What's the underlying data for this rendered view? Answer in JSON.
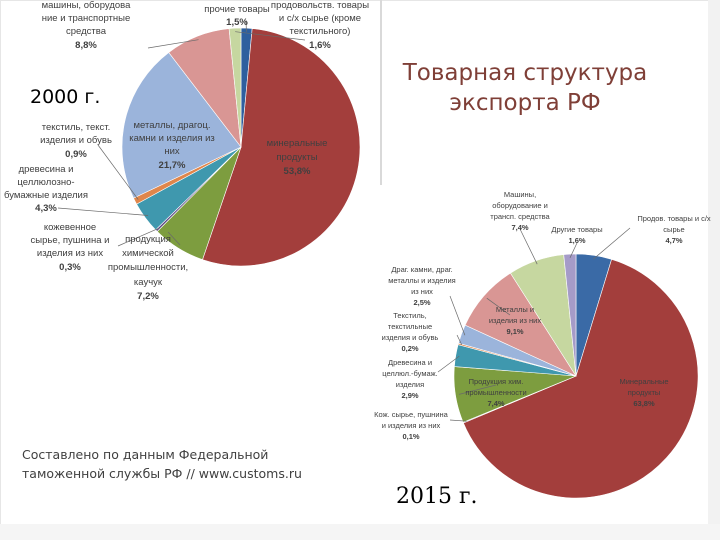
{
  "slide": {
    "title_line1": "Товарная структура",
    "title_line2": "экспорта РФ",
    "year_2000": "2000 г.",
    "year_2015": "2015 г.",
    "source_line1": "Составлено по данным Федеральной",
    "source_line2": "таможенной службы РФ // www.customs.ru"
  },
  "chart_data": [
    {
      "type": "pie",
      "title": "2000 г.",
      "slices": [
        {
          "label": "прочие товары",
          "value": 1.5,
          "color": "#2e5f9e"
        },
        {
          "label": "минеральные продукты",
          "value": 53.8,
          "color": "#a33e3c"
        },
        {
          "label": "продукция химической промышленности, каучук",
          "value": 7.2,
          "color": "#7d9d3f"
        },
        {
          "label": "кожевенное сырье, пушнина и изделия из них",
          "value": 0.3,
          "color": "#5b4a86"
        },
        {
          "label": "древесина и целлюлозно-бумажные изделия",
          "value": 4.3,
          "color": "#3f98ae"
        },
        {
          "label": "текстиль, текстильные изделия и обувь",
          "value": 0.9,
          "color": "#e0864b"
        },
        {
          "label": "металлы, драгоценные камни и изделия из них",
          "value": 21.7,
          "color": "#9bb4db"
        },
        {
          "label": "машины, оборудование и транспортные средства",
          "value": 8.8,
          "color": "#d99694"
        },
        {
          "label": "продовольственные товары и с/х сырье (кроме текстильного)",
          "value": 1.6,
          "color": "#c6d7a0"
        }
      ],
      "label_texts": [
        {
          "text": "машины, оборудова",
          "bold": false
        },
        {
          "text": "ние и транспортные",
          "bold": false
        },
        {
          "text": "средства",
          "bold": false
        },
        {
          "text": "8,8%",
          "bold": true
        },
        {
          "text": "прочие товары",
          "bold": false
        },
        {
          "text": "1,5%",
          "bold": true
        },
        {
          "text": "продовольств. товары",
          "bold": false
        },
        {
          "text": "и с/х сырье (кроме",
          "bold": false
        },
        {
          "text": "текстильного)",
          "bold": false
        },
        {
          "text": "1,6%",
          "bold": true
        },
        {
          "text": "текстиль, текст.",
          "bold": false
        },
        {
          "text": "изделия и обувь",
          "bold": false
        },
        {
          "text": "0,9%",
          "bold": true
        },
        {
          "text": "металлы, драгоц.",
          "bold": false
        },
        {
          "text": "камни и изделия из",
          "bold": false
        },
        {
          "text": "них",
          "bold": false
        },
        {
          "text": "21,7%",
          "bold": true
        },
        {
          "text": "минеральные",
          "bold": false
        },
        {
          "text": "продукты",
          "bold": false
        },
        {
          "text": "53,8%",
          "bold": true
        },
        {
          "text": "древесина и",
          "bold": false
        },
        {
          "text": "целлюлозно-",
          "bold": false
        },
        {
          "text": "бумажные изделия",
          "bold": false
        },
        {
          "text": "4,3%",
          "bold": true
        },
        {
          "text": "кожевенное",
          "bold": false
        },
        {
          "text": "сырье, пушнина и",
          "bold": false
        },
        {
          "text": "изделия из них",
          "bold": false
        },
        {
          "text": "0,3%",
          "bold": true
        },
        {
          "text": "продукция",
          "bold": false
        },
        {
          "text": "химической",
          "bold": false
        },
        {
          "text": "промышленности,",
          "bold": false
        },
        {
          "text": "каучук",
          "bold": false
        },
        {
          "text": "7,2%",
          "bold": true
        }
      ]
    },
    {
      "type": "pie",
      "title": "2015 г.",
      "slices": [
        {
          "label": "Продов. товары и с/х сырье",
          "value": 4.7,
          "color": "#3a6aa6"
        },
        {
          "label": "Минеральные продукты",
          "value": 63.8,
          "color": "#a33e3c"
        },
        {
          "label": "Кож. сырье, пушнина и изделия из них",
          "value": 0.1,
          "color": "#5b4a86"
        },
        {
          "label": "Продукция хим. промышленности",
          "value": 7.4,
          "color": "#7d9d3f"
        },
        {
          "label": "Древесина и целлюл.-бумаж. изделия",
          "value": 2.9,
          "color": "#3f98ae"
        },
        {
          "label": "Текстиль, текстильные изделия и обувь",
          "value": 0.2,
          "color": "#e0864b"
        },
        {
          "label": "Драг. камни, драг. металлы и изделия из них",
          "value": 2.5,
          "color": "#9bb4db"
        },
        {
          "label": "Металлы и изделия из них",
          "value": 9.1,
          "color": "#d99694"
        },
        {
          "label": "Машины, оборудование и трансп. средства",
          "value": 7.4,
          "color": "#c6d7a0"
        },
        {
          "label": "Другие товары",
          "value": 1.6,
          "color": "#a59bc8"
        }
      ],
      "label_texts": [
        {
          "text": "Машины,",
          "bold": false
        },
        {
          "text": "оборудование и",
          "bold": false
        },
        {
          "text": "трансп. средства",
          "bold": false
        },
        {
          "text": "7,4%",
          "bold": true
        },
        {
          "text": "Другие товары",
          "bold": false
        },
        {
          "text": "1,6%",
          "bold": true
        },
        {
          "text": "Продов. товары и с/х",
          "bold": false
        },
        {
          "text": "сырье",
          "bold": false
        },
        {
          "text": "4,7%",
          "bold": true
        },
        {
          "text": "Драг. камни, драг.",
          "bold": false
        },
        {
          "text": "металлы и изделия",
          "bold": false
        },
        {
          "text": "из них",
          "bold": false
        },
        {
          "text": "2,5%",
          "bold": true
        },
        {
          "text": "Металлы и",
          "bold": false
        },
        {
          "text": "изделия из них",
          "bold": false
        },
        {
          "text": "9,1%",
          "bold": true
        },
        {
          "text": "Текстиль,",
          "bold": false
        },
        {
          "text": "текстильные",
          "bold": false
        },
        {
          "text": "изделия и обувь",
          "bold": false
        },
        {
          "text": "0,2%",
          "bold": true
        },
        {
          "text": "Древесина и",
          "bold": false
        },
        {
          "text": "целлюл.-бумаж.",
          "bold": false
        },
        {
          "text": "изделия",
          "bold": false
        },
        {
          "text": "2,9%",
          "bold": true
        },
        {
          "text": "Продукция хим.",
          "bold": false
        },
        {
          "text": "промышленности",
          "bold": false
        },
        {
          "text": "7,4%",
          "bold": true
        },
        {
          "text": "Минеральные",
          "bold": false
        },
        {
          "text": "продукты",
          "bold": false
        },
        {
          "text": "63,8%",
          "bold": true
        },
        {
          "text": "Кож. сырье, пушнина",
          "bold": false
        },
        {
          "text": "и изделия из них",
          "bold": false
        },
        {
          "text": "0,1%",
          "bold": true
        }
      ]
    }
  ]
}
